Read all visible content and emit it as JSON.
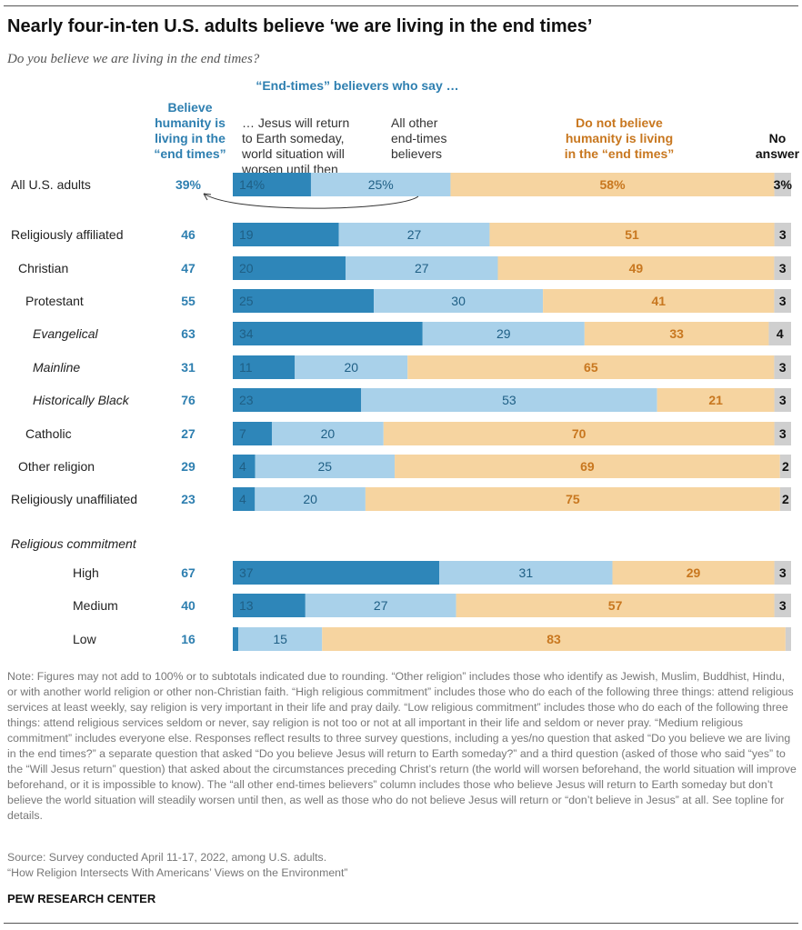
{
  "header": {
    "title": "Nearly four-in-ten U.S. adults believe ‘we are living in the end times’",
    "subtitle": "Do you believe we are living in the end times?"
  },
  "columns": {
    "believe": [
      "Believe",
      "humanity is",
      "living in the",
      "“end times”"
    ],
    "group_title": "“End-times” believers who say …",
    "jesus": [
      "… Jesus will return",
      "to Earth someday,",
      "world situation will",
      "worsen until then"
    ],
    "other": [
      "All other",
      "end-times",
      "believers"
    ],
    "not_believe": [
      "Do not believe",
      "humanity is living",
      "in the “end times”"
    ],
    "no_answer": [
      "No",
      "answer"
    ]
  },
  "colors": {
    "jesus": "#2e86b9",
    "other": "#a9d1ea",
    "not_believe": "#f6d4a0",
    "no_answer": "#cfcfcf",
    "label_blue": "#2e7fb0",
    "label_dark": "#1f5f85",
    "label_orange": "#c8771f"
  },
  "chart_data": {
    "type": "bar",
    "orientation": "horizontal",
    "stacked": true,
    "title": "Nearly four-in-ten U.S. adults believe ‘we are living in the end times’",
    "subtitle": "Do you believe we are living in the end times?",
    "series_names": [
      "… Jesus will return to Earth someday, world situation will worsen until then",
      "All other end-times believers",
      "Do not believe humanity is living in the “end times”",
      "No answer"
    ],
    "total_column_name": "Believe humanity is living in the “end times”",
    "xlim": [
      0,
      100
    ],
    "rows": [
      {
        "label": "All U.S. adults",
        "indent": 0,
        "italic": false,
        "total": "39%",
        "values": [
          14,
          25,
          58,
          3
        ],
        "labels": [
          "14%",
          "25%",
          "58%",
          "3%"
        ]
      },
      {
        "label": "Religiously affiliated",
        "indent": 0,
        "italic": false,
        "total": "46",
        "values": [
          19,
          27,
          51,
          3
        ],
        "labels": [
          "19",
          "27",
          "51",
          "3"
        ]
      },
      {
        "label": "Christian",
        "indent": 1,
        "italic": false,
        "total": "47",
        "values": [
          20,
          27,
          49,
          3
        ],
        "labels": [
          "20",
          "27",
          "49",
          "3"
        ]
      },
      {
        "label": "Protestant",
        "indent": 2,
        "italic": false,
        "total": "55",
        "values": [
          25,
          30,
          41,
          3
        ],
        "labels": [
          "25",
          "30",
          "41",
          "3"
        ]
      },
      {
        "label": "Evangelical",
        "indent": 3,
        "italic": true,
        "total": "63",
        "values": [
          34,
          29,
          33,
          4
        ],
        "labels": [
          "34",
          "29",
          "33",
          "4"
        ]
      },
      {
        "label": "Mainline",
        "indent": 3,
        "italic": true,
        "total": "31",
        "values": [
          11,
          20,
          65,
          3
        ],
        "labels": [
          "11",
          "20",
          "65",
          "3"
        ]
      },
      {
        "label": "Historically Black",
        "indent": 3,
        "italic": true,
        "total": "76",
        "values": [
          23,
          53,
          21,
          3
        ],
        "labels": [
          "23",
          "53",
          "21",
          "3"
        ]
      },
      {
        "label": "Catholic",
        "indent": 2,
        "italic": false,
        "total": "27",
        "values": [
          7,
          20,
          70,
          3
        ],
        "labels": [
          "7",
          "20",
          "70",
          "3"
        ]
      },
      {
        "label": "Other religion",
        "indent": 1,
        "italic": false,
        "total": "29",
        "values": [
          4,
          25,
          69,
          2
        ],
        "labels": [
          "4",
          "25",
          "69",
          "2"
        ]
      },
      {
        "label": "Religiously unaffiliated",
        "indent": 0,
        "italic": false,
        "total": "23",
        "values": [
          4,
          20,
          75,
          2
        ],
        "labels": [
          "4",
          "20",
          "75",
          "2"
        ]
      },
      {
        "label": "High",
        "indent": 4,
        "italic": false,
        "total": "67",
        "values": [
          37,
          31,
          29,
          3
        ],
        "labels": [
          "37",
          "31",
          "29",
          "3"
        ]
      },
      {
        "label": "Medium",
        "indent": 4,
        "italic": false,
        "total": "40",
        "values": [
          13,
          27,
          57,
          3
        ],
        "labels": [
          "13",
          "27",
          "57",
          "3"
        ]
      },
      {
        "label": "Low",
        "indent": 4,
        "italic": false,
        "total": "16",
        "values": [
          1,
          15,
          83,
          1
        ],
        "labels": [
          "",
          "15",
          "83",
          ""
        ]
      }
    ],
    "section_label": "Religious commitment"
  },
  "footer": {
    "note": "Note: Figures may not add to 100% or to subtotals indicated due to rounding. “Other religion” includes those who identify as Jewish, Muslim, Buddhist, Hindu, or with another world religion or other non-Christian faith. “High religious commitment” includes those who do each of the following three things: attend religious services at least weekly, say religion is very important in their life and pray daily. “Low religious commitment” includes those who do each of the following three things: attend religious services seldom or never, say religion is not too or not at all important in their life and seldom or never pray. “Medium religious commitment” includes everyone else. Responses reflect results to three survey questions, including a yes/no question that asked “Do you believe we are living in the end times?” a separate question that asked “Do you believe Jesus will return to Earth someday?” and a third question (asked of those who said “yes” to the “Will Jesus return” question) that asked about the circumstances preceding Christ’s return (the world will worsen beforehand, the world situation will improve beforehand, or it is impossible to know). The “all other end-times believers” column includes those who believe Jesus will return to Earth someday but don’t believe the world situation will steadily worsen until then, as well as those who do not believe Jesus will return or “don’t believe in Jesus” at all. See topline for details.",
    "source": "Source: Survey conducted April 11-17, 2022, among U.S. adults.",
    "credit": "“How Religion Intersects With Americans’ Views on the Environment”",
    "org": "PEW RESEARCH CENTER"
  }
}
